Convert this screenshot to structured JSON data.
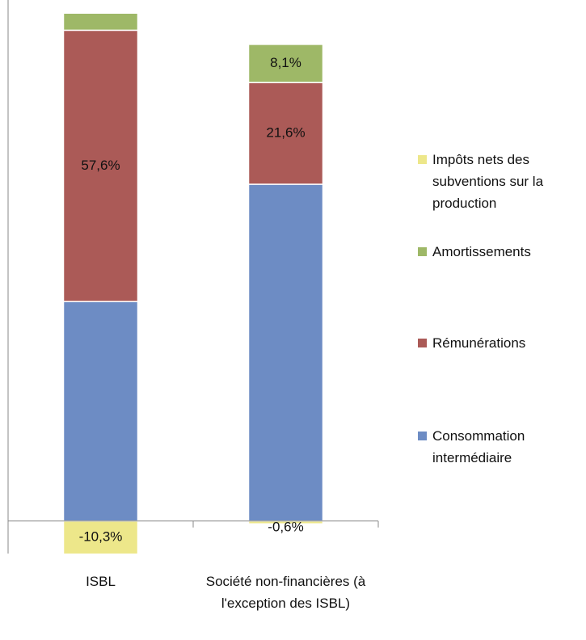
{
  "chart_data": {
    "type": "bar",
    "stacked": true,
    "categories": [
      "ISBL",
      "Société non-financières (à l'exception des ISBL)"
    ],
    "series": [
      {
        "name": "Consommation intermédiaire",
        "color": "#6d8cc4",
        "values": [
          46.6,
          71.5
        ]
      },
      {
        "name": "Rémunérations",
        "color": "#ab5a57",
        "values": [
          57.6,
          21.6
        ],
        "value_labels": [
          "57,6%",
          "21,6%"
        ]
      },
      {
        "name": "Amortissements",
        "color": "#9eb867",
        "values": [
          6.1,
          8.1
        ],
        "value_labels": [
          null,
          "8,1%"
        ]
      },
      {
        "name": "Impôts nets des subventions sur la production",
        "color": "#ede78a",
        "values": [
          -10.3,
          -0.6
        ],
        "value_labels": [
          "-10,3%",
          "-0,6%"
        ]
      }
    ],
    "ylim": [
      -6.9,
      107.7
    ],
    "legend": "right"
  }
}
